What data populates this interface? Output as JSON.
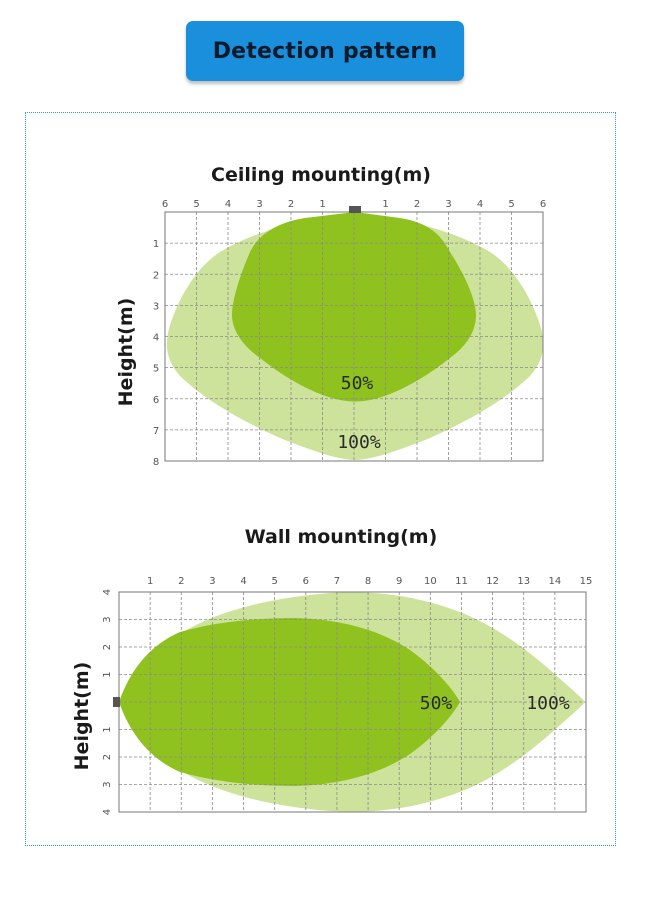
{
  "header": {
    "title": "Detection pattern"
  },
  "ceiling": {
    "title": "Ceiling mounting(m)",
    "ylabel": "Height(m)",
    "x_ticks": [
      "6",
      "5",
      "4",
      "3",
      "2",
      "1",
      "",
      "1",
      "2",
      "3",
      "4",
      "5",
      "6"
    ],
    "y_ticks": [
      "1",
      "2",
      "3",
      "4",
      "5",
      "6",
      "7",
      "8"
    ],
    "label_50": "50%",
    "label_100": "100%"
  },
  "wall": {
    "title": "Wall mounting(m)",
    "ylabel": "Height(m)",
    "x_ticks": [
      "1",
      "2",
      "3",
      "4",
      "5",
      "6",
      "7",
      "8",
      "9",
      "10",
      "11",
      "12",
      "13",
      "14",
      "15"
    ],
    "y_ticks": [
      "4",
      "3",
      "2",
      "1",
      "",
      "1",
      "2",
      "3",
      "4"
    ],
    "label_50": "50%",
    "label_100": "100%"
  },
  "colors": {
    "outer_zone": "#cde39b",
    "inner_zone": "#8fc21f",
    "badge": "#1a8fdc",
    "frame": "#2e9be6",
    "sensor": "#555555"
  }
}
